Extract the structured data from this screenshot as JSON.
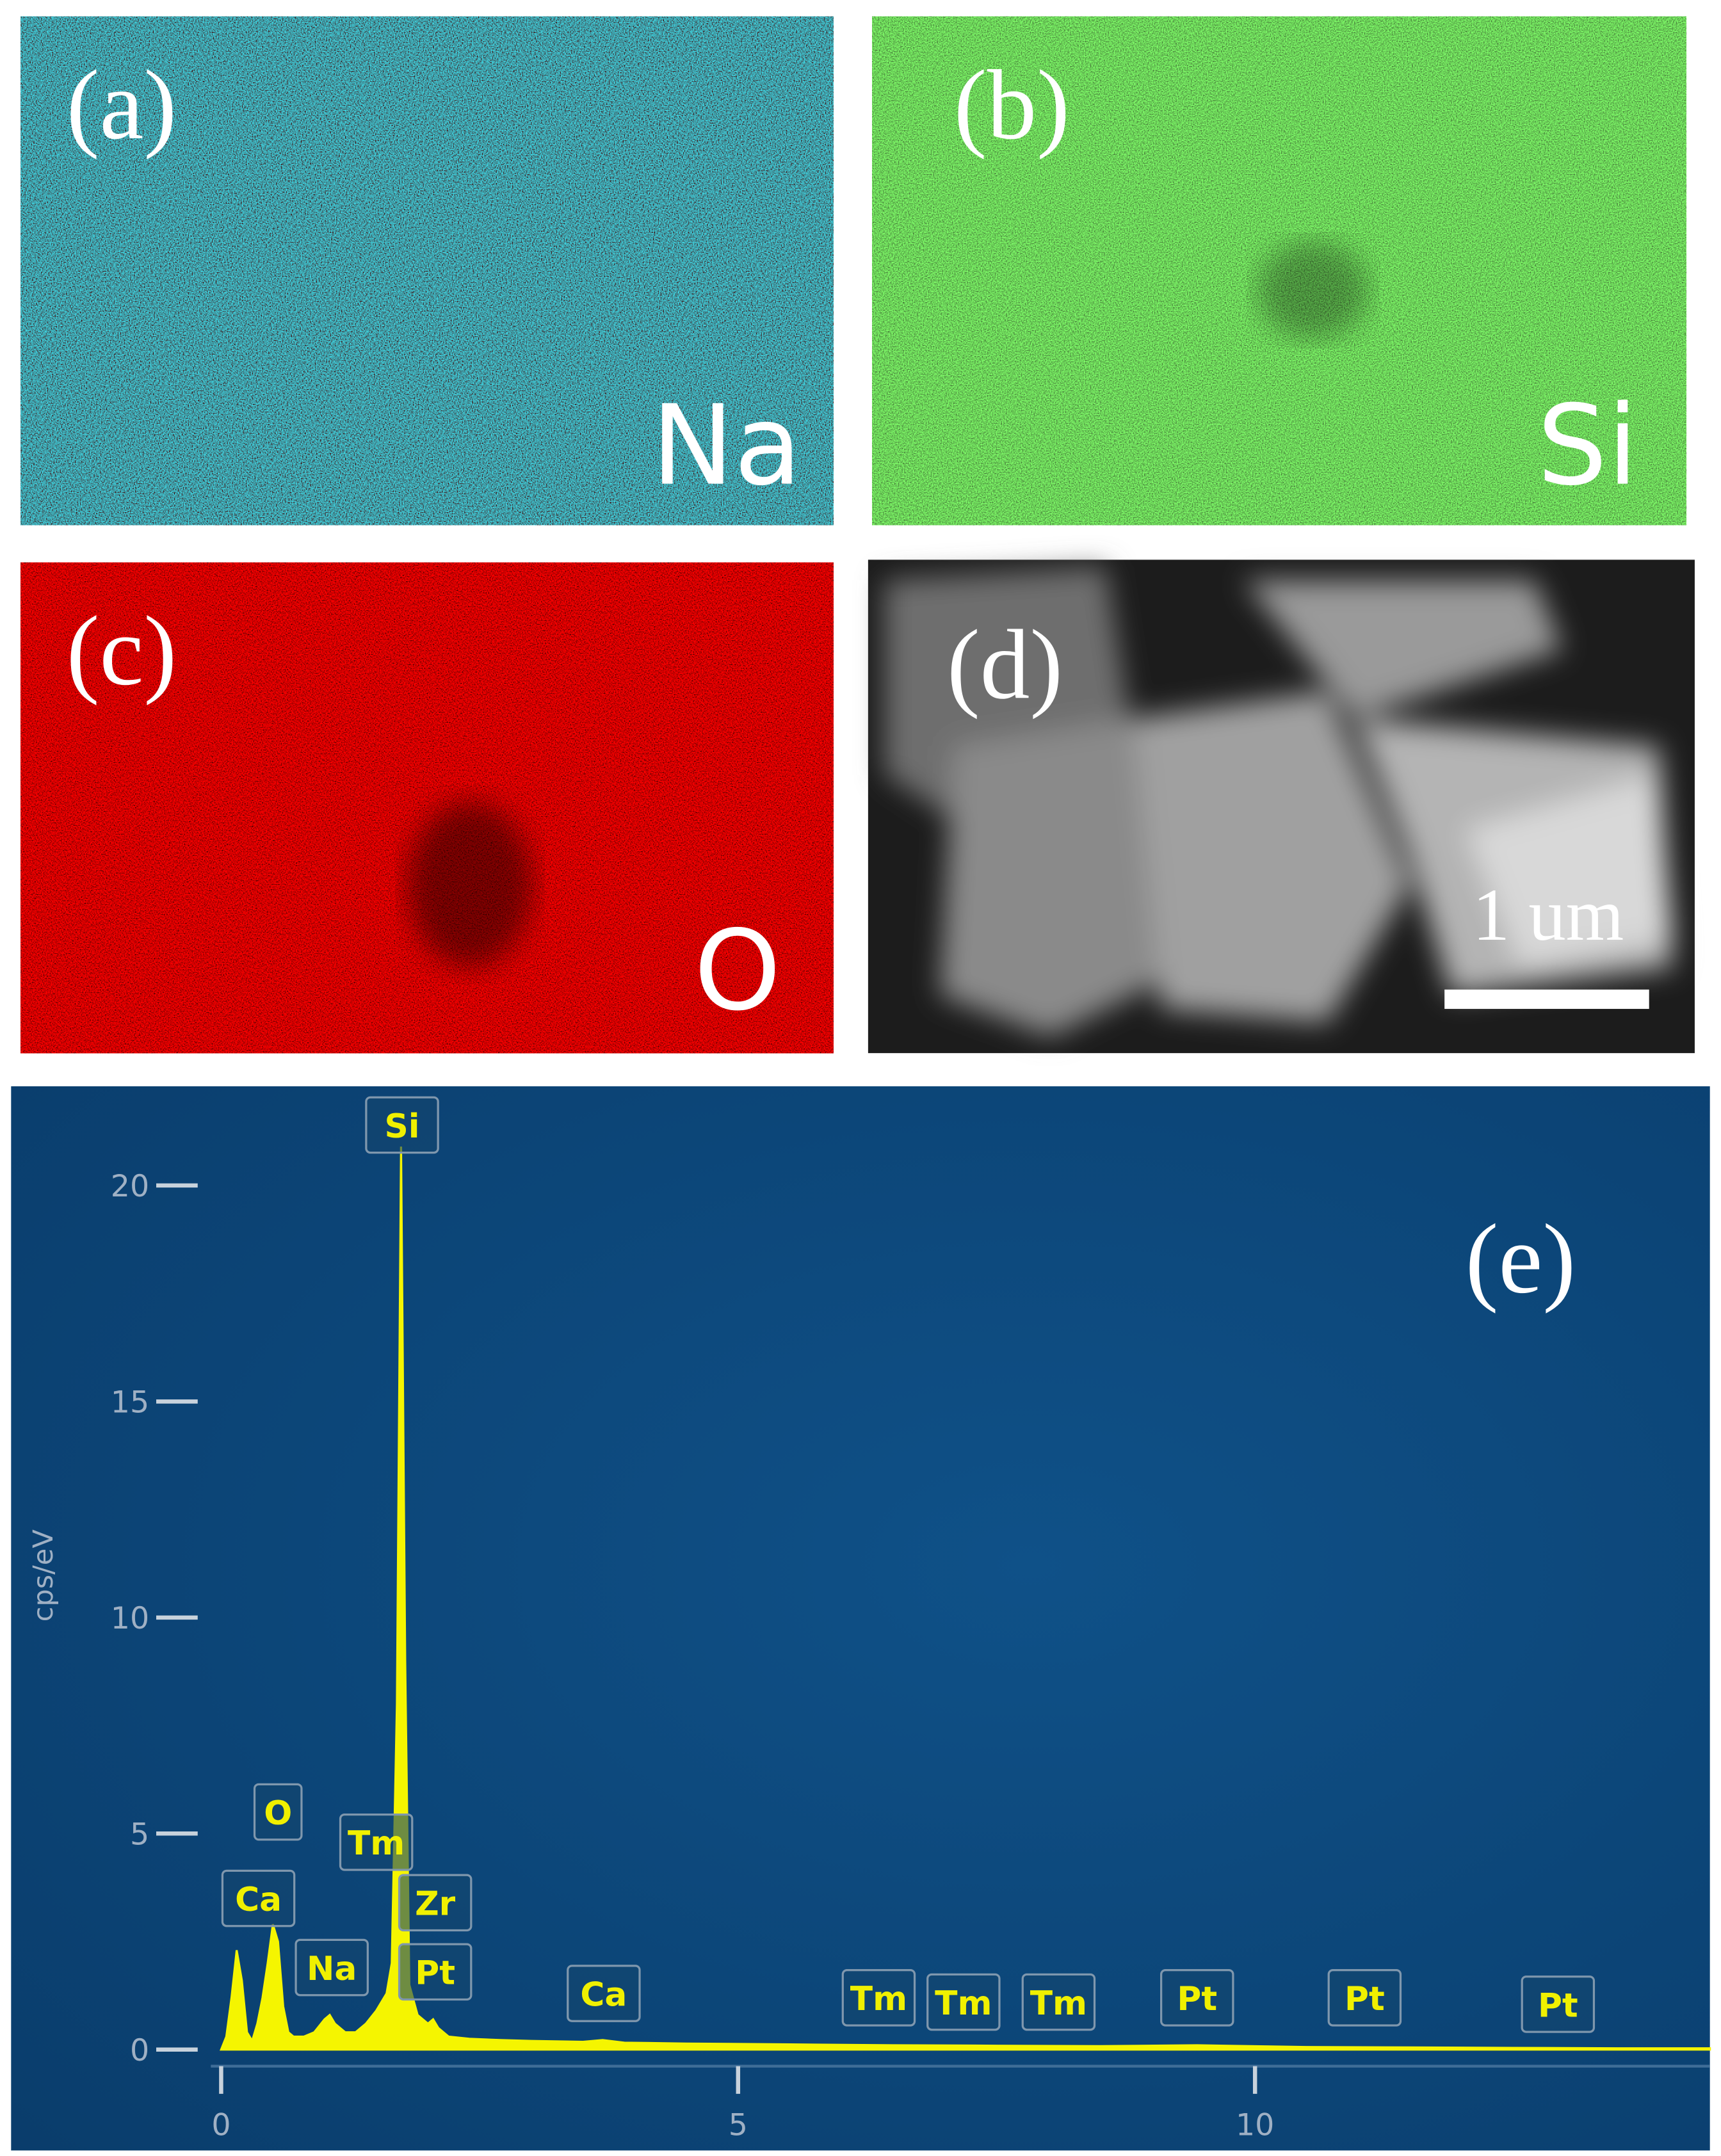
{
  "panels": [
    {
      "label": "(a)",
      "element": "Na"
    },
    {
      "label": "(b)",
      "element": "Si"
    },
    {
      "label": "(c)",
      "element": "O"
    },
    {
      "label": "(d)",
      "scale_bar": "1 um"
    }
  ],
  "chart_data": {
    "type": "area",
    "label": "(e)",
    "ylabel": "cps/eV",
    "x": [
      0,
      0.05,
      0.1,
      0.15,
      0.2,
      0.25,
      0.3,
      0.35,
      0.4,
      0.45,
      0.5,
      0.55,
      0.6,
      0.65,
      0.7,
      0.8,
      0.9,
      1.0,
      1.05,
      1.1,
      1.2,
      1.3,
      1.4,
      1.5,
      1.6,
      1.65,
      1.7,
      1.74,
      1.78,
      1.82,
      1.9,
      2.0,
      2.05,
      2.1,
      2.2,
      2.4,
      2.7,
      3.0,
      3.5,
      3.69,
      3.9,
      4.5,
      5.5,
      6.5,
      7.5,
      8.5,
      9.44,
      10.5,
      11.5,
      12.5,
      13.5,
      14.4
    ],
    "series": [
      {
        "color": "#f5f500",
        "values": [
          0,
          0.3,
          1.2,
          2.3,
          1.6,
          0.4,
          0.2,
          0.6,
          1.2,
          2.0,
          2.9,
          2.5,
          1.0,
          0.4,
          0.3,
          0.3,
          0.4,
          0.7,
          0.8,
          0.6,
          0.4,
          0.4,
          0.6,
          0.9,
          1.3,
          2.0,
          8,
          20.9,
          9,
          1.5,
          0.8,
          0.6,
          0.7,
          0.5,
          0.3,
          0.25,
          0.22,
          0.2,
          0.18,
          0.22,
          0.16,
          0.14,
          0.12,
          0.1,
          0.09,
          0.08,
          0.1,
          0.06,
          0.05,
          0.04,
          0.03,
          0.03
        ]
      }
    ],
    "peak_labels": [
      {
        "text": "Ca",
        "x": 0.36,
        "y": 3.5
      },
      {
        "text": "O",
        "x": 0.55,
        "y": 5.5
      },
      {
        "text": "Na",
        "x": 1.07,
        "y": 1.9
      },
      {
        "text": "Tm",
        "x": 1.5,
        "y": 4.8
      },
      {
        "text": "Si",
        "x": 1.75,
        "y": 21.4
      },
      {
        "text": "Zr",
        "x": 2.07,
        "y": 3.4
      },
      {
        "text": "Pt",
        "x": 2.07,
        "y": 1.8
      },
      {
        "text": "Ca",
        "x": 3.7,
        "y": 1.3
      },
      {
        "text": "Tm",
        "x": 6.36,
        "y": 1.2
      },
      {
        "text": "Tm",
        "x": 7.18,
        "y": 1.1
      },
      {
        "text": "Tm",
        "x": 8.1,
        "y": 1.1
      },
      {
        "text": "Pt",
        "x": 9.44,
        "y": 1.2
      },
      {
        "text": "Pt",
        "x": 11.06,
        "y": 1.2
      },
      {
        "text": "Pt",
        "x": 12.93,
        "y": 1.05
      }
    ],
    "xlim": [
      -0.1,
      14.4
    ],
    "ylim": [
      0,
      22.2
    ],
    "xticks": [
      0,
      5,
      10
    ],
    "yticks": [
      0,
      5,
      10,
      15,
      20
    ]
  }
}
